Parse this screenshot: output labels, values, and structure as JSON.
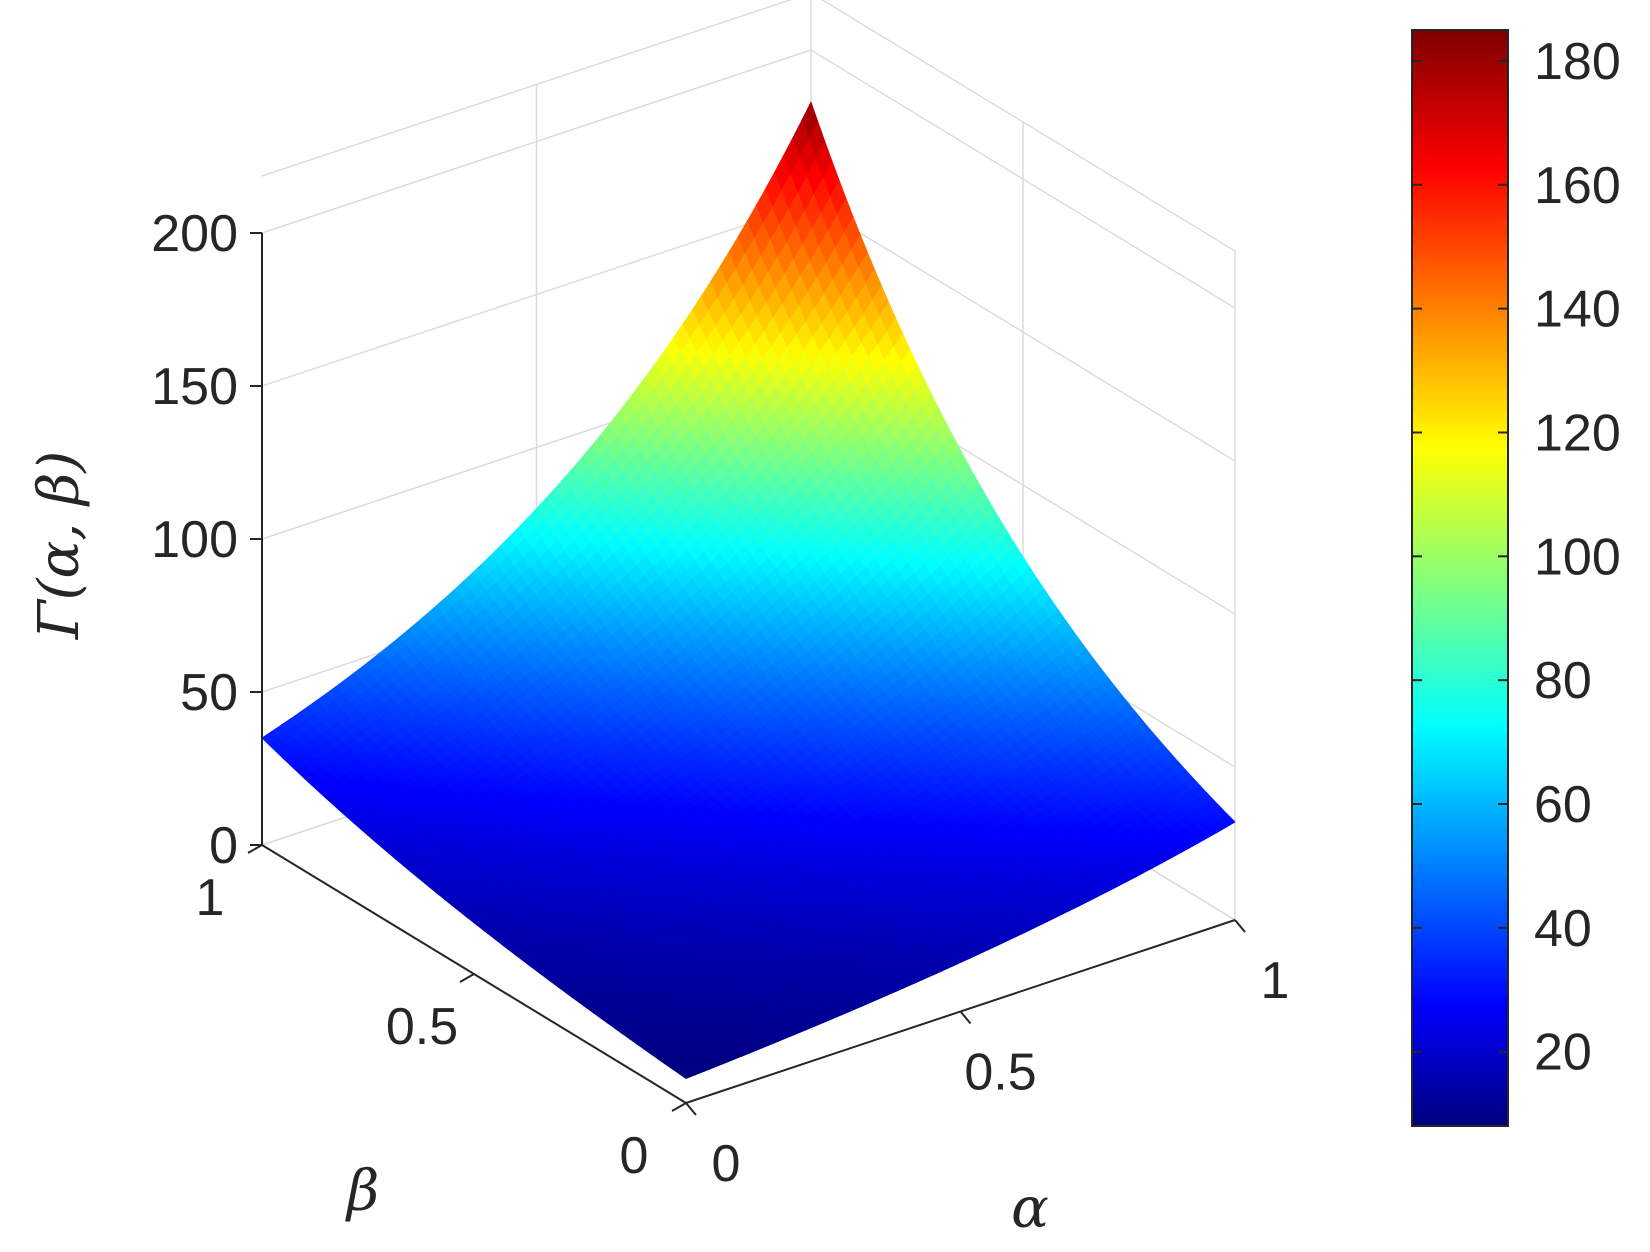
{
  "chart_data": {
    "type": "surface",
    "zlabel": "Γ(α, β)",
    "xlabel": "α",
    "ylabel": "β",
    "xlim": [
      0,
      1
    ],
    "ylim": [
      0,
      1
    ],
    "zlim": [
      0,
      200
    ],
    "x_ticks": [
      "0",
      "0.5",
      "1"
    ],
    "y_ticks": [
      "0",
      "0.5",
      "1"
    ],
    "z_ticks": [
      "0",
      "50",
      "100",
      "150",
      "200"
    ],
    "corner_values": [
      {
        "alpha": 0,
        "beta": 0,
        "gamma": 8
      },
      {
        "alpha": 1,
        "beta": 0,
        "gamma": 32
      },
      {
        "alpha": 0,
        "beta": 1,
        "gamma": 35
      },
      {
        "alpha": 1,
        "beta": 1,
        "gamma": 183
      }
    ],
    "colorbar": {
      "colormap": "jet",
      "range": [
        8,
        185
      ],
      "ticks": [
        "20",
        "40",
        "60",
        "80",
        "100",
        "120",
        "140",
        "160",
        "180"
      ]
    },
    "grid": true
  }
}
